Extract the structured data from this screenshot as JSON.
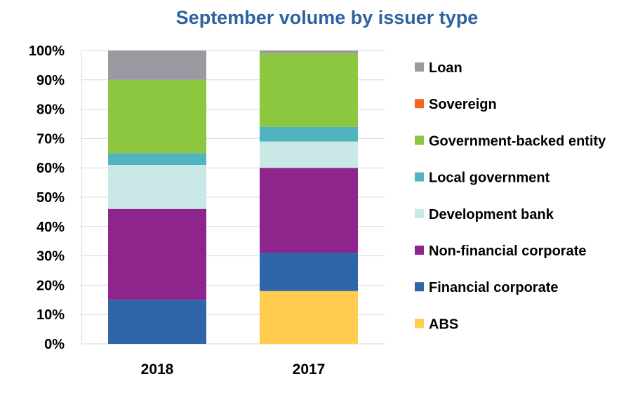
{
  "chart_data": {
    "type": "bar",
    "stacked": true,
    "title": "September volume by issuer type",
    "xlabel": "",
    "ylabel": "",
    "ylim": [
      0,
      100
    ],
    "yticks": [
      "0%",
      "10%",
      "20%",
      "30%",
      "40%",
      "50%",
      "60%",
      "70%",
      "80%",
      "90%",
      "100%"
    ],
    "grid": true,
    "legend": "right",
    "categories": [
      "2018",
      "2017"
    ],
    "series": [
      {
        "name": "ABS",
        "color": "#FFCC4D",
        "values": [
          0,
          18
        ]
      },
      {
        "name": "Financial corporate",
        "color": "#2E66A8",
        "values": [
          15,
          13
        ]
      },
      {
        "name": "Non-financial corporate",
        "color": "#8E258D",
        "values": [
          31,
          29
        ]
      },
      {
        "name": "Development bank",
        "color": "#C9E8E6",
        "values": [
          15,
          9
        ]
      },
      {
        "name": "Local government",
        "color": "#4FB3C0",
        "values": [
          4,
          5
        ]
      },
      {
        "name": "Government-backed entity",
        "color": "#8DC63F",
        "values": [
          25,
          25
        ]
      },
      {
        "name": "Sovereign",
        "color": "#F26522",
        "values": [
          0,
          0
        ]
      },
      {
        "name": "Loan",
        "color": "#9B9AA3",
        "values": [
          10,
          1
        ]
      }
    ]
  }
}
